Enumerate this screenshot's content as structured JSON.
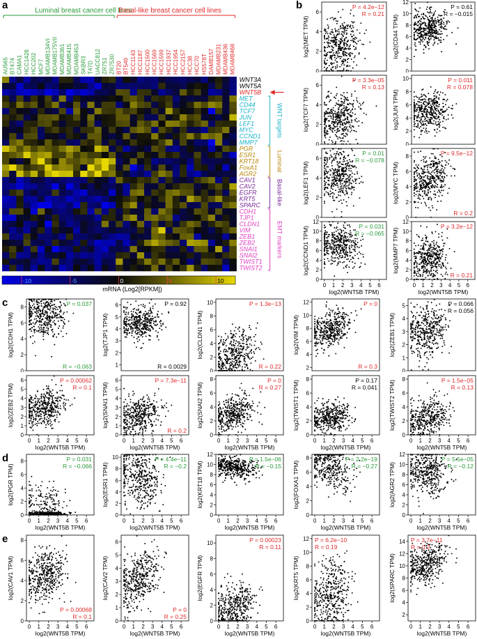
{
  "letters": {
    "a": "a",
    "b": "b",
    "c": "c",
    "d": "d",
    "e": "e"
  },
  "colors": {
    "luminal_group": "#2a9a3a",
    "basal_group": "#e02828",
    "wnt_targets": "#1ab3c8",
    "luminal_markers": "#b8860b",
    "basal_markers": "#7a2a9a",
    "emt_markers": "#e040c0",
    "sig_red": "#e02828",
    "sig_green": "#2a9a3a",
    "ns_black": "#000000"
  },
  "heatmap": {
    "luminal_header": "Luminal breast cancer cell lines",
    "basal_header": "Basal-like breast cancer cell lines",
    "luminal_lines": [
      "AU565",
      "BT474",
      "CAMA1",
      "HCC1428",
      "HCC202",
      "MCF7",
      "MDAMB134VI",
      "MDAMB175VII",
      "MDAMB361",
      "MDAMB415",
      "MDAMB453",
      "SKBR3",
      "T47D",
      "UACC812",
      "ZR751",
      "ZR7530"
    ],
    "basal_lines": [
      "BT20",
      "BT549",
      "HCC1143",
      "HCC1187",
      "HCC1500",
      "HCC1569",
      "HCC1599",
      "HCC1937",
      "HCC1954",
      "HCC2157",
      "HCC38",
      "HCC70",
      "HS578T",
      "DAMB157",
      "MDAMB231",
      "MDAMB436",
      "MDAMB468"
    ],
    "genes": [
      {
        "name": "WNT3A",
        "group": "top"
      },
      {
        "name": "WNT5A",
        "group": "top"
      },
      {
        "name": "WNT5B",
        "group": "focus"
      },
      {
        "name": "MET",
        "group": "wnt"
      },
      {
        "name": "CD44",
        "group": "wnt"
      },
      {
        "name": "TCF7",
        "group": "wnt"
      },
      {
        "name": "JUN",
        "group": "wnt"
      },
      {
        "name": "LEF1",
        "group": "wnt"
      },
      {
        "name": "MYC",
        "group": "wnt"
      },
      {
        "name": "CCND1",
        "group": "wnt"
      },
      {
        "name": "MMP7",
        "group": "wnt"
      },
      {
        "name": "PGR",
        "group": "lum"
      },
      {
        "name": "ESR1",
        "group": "lum"
      },
      {
        "name": "KRT18",
        "group": "lum"
      },
      {
        "name": "FoxA1",
        "group": "lum"
      },
      {
        "name": "AGR2",
        "group": "lum"
      },
      {
        "name": "CAV1",
        "group": "bas"
      },
      {
        "name": "CAV2",
        "group": "bas"
      },
      {
        "name": "EGFR",
        "group": "bas"
      },
      {
        "name": "KRT5",
        "group": "bas"
      },
      {
        "name": "SPARC",
        "group": "bas"
      },
      {
        "name": "CDH1",
        "group": "emt"
      },
      {
        "name": "TJP1",
        "group": "emt"
      },
      {
        "name": "CLDN1",
        "group": "emt"
      },
      {
        "name": "VIM",
        "group": "emt"
      },
      {
        "name": "ZEB1",
        "group": "emt"
      },
      {
        "name": "ZEB2",
        "group": "emt"
      },
      {
        "name": "SNAI1",
        "group": "emt"
      },
      {
        "name": "SNAI2",
        "group": "emt"
      },
      {
        "name": "TWIST1",
        "group": "emt"
      },
      {
        "name": "TWIST2",
        "group": "emt"
      }
    ],
    "group_labels": {
      "wnt": "WNT targets",
      "lum": "Luminal",
      "bas": "Basal-like",
      "emt": "EMT markers"
    },
    "colorbar_ticks": [
      "-10",
      "-5",
      "0",
      "5",
      "10"
    ],
    "colorbar_label": "mRNA (Log2[RPKM])"
  },
  "scatter": {
    "x_label": "log2(WNT5B TPM)",
    "x_ticks": [
      "0",
      "1",
      "2",
      "3",
      "4",
      "5",
      "6"
    ],
    "panels_b": [
      {
        "gene": "MET",
        "ylabel": "log2(MET TPM)",
        "yticks": [
          "0",
          "2",
          "4",
          "6"
        ],
        "p": "P = 4.2e−12",
        "r": "R = 0.21",
        "sig": "red",
        "pos": "tr",
        "mu": 2.5,
        "slope": 0.3,
        "sd": 1.4,
        "ymax": 7,
        "ymin": 0
      },
      {
        "gene": "CD44",
        "ylabel": "log2(CD44 TPM)",
        "yticks": [
          "0",
          "2",
          "4",
          "6",
          "8",
          "10",
          "12"
        ],
        "p": "P = 0.61",
        "r": "R = −0.015",
        "sig": "black",
        "pos": "tr",
        "mu": 7.5,
        "slope": 0,
        "sd": 1.6,
        "ymax": 12,
        "ymin": 0
      },
      {
        "gene": "TCF7",
        "ylabel": "log2(TCF7 TPM)",
        "yticks": [
          "0",
          "2",
          "4",
          "6"
        ],
        "p": "P = 3.3e−05",
        "r": "R = 0.13",
        "sig": "red",
        "pos": "tr",
        "mu": 2.7,
        "slope": 0.2,
        "sd": 1.3,
        "ymax": 7,
        "ymin": 0
      },
      {
        "gene": "JUN",
        "ylabel": "log2(JUN TPM)",
        "yticks": [
          "0",
          "2",
          "4",
          "6",
          "8",
          "10"
        ],
        "p": "P = 0.011",
        "r": "R = 0.078",
        "sig": "red",
        "pos": "tr",
        "mu": 5,
        "slope": 0.15,
        "sd": 1.5,
        "ymax": 10.5,
        "ymin": 0
      },
      {
        "gene": "LEF1",
        "ylabel": "log2(LEF1 TPM)",
        "yticks": [
          "0",
          "2",
          "4",
          "6"
        ],
        "p": "P = 0.01",
        "r": "R = −0.078",
        "sig": "green",
        "pos": "tr",
        "mu": 4.2,
        "slope": -0.15,
        "sd": 1.4,
        "ymax": 7,
        "ymin": 0
      },
      {
        "gene": "MYC",
        "ylabel": "log2(MYC TPM)",
        "yticks": [
          "0",
          "2",
          "4",
          "6",
          "8"
        ],
        "p": "P = 9.5e−12",
        "r": "R = 0.2",
        "sig": "red",
        "pos": "split",
        "mu": 5,
        "slope": 0.35,
        "sd": 1.6,
        "ymax": 9,
        "ymin": 0
      },
      {
        "gene": "CCND1",
        "ylabel": "log2(CCND1 TPM)",
        "yticks": [
          "0",
          "2",
          "4",
          "6",
          "8",
          "10",
          "12"
        ],
        "p": "P = 0.031",
        "r": "R = −0.065",
        "sig": "green",
        "pos": "tr",
        "mu": 7,
        "slope": -0.2,
        "sd": 2,
        "ymax": 12,
        "ymin": 0
      },
      {
        "gene": "MMP7",
        "ylabel": "log2(MMP7 TPM)",
        "yticks": [
          "0",
          "2",
          "4",
          "6",
          "8",
          "10",
          "12"
        ],
        "p": "P = 3.2e−12",
        "r": "R = 0.21",
        "sig": "red",
        "pos": "split",
        "mu": 4.5,
        "slope": 0.5,
        "sd": 2.3,
        "ymax": 12,
        "ymin": 0
      }
    ],
    "panels_c1": [
      {
        "gene": "CDH1",
        "ylabel": "log2(CDH1 TPM)",
        "yticks": [
          "0",
          "2",
          "4",
          "6",
          "8"
        ],
        "p": "P = 0.037",
        "r": "R = −0.063",
        "sig": "green",
        "pos": "split",
        "mu": 6.8,
        "slope": -0.15,
        "sd": 1.5,
        "ymax": 9,
        "ymin": 0
      },
      {
        "gene": "TJP1",
        "ylabel": "log2(TJP1 TPM)",
        "yticks": [
          "1",
          "2",
          "3",
          "4",
          "5",
          "6"
        ],
        "p": "P = 0.92",
        "r": "R = 0.0029",
        "sig": "black",
        "pos": "split",
        "mu": 4.5,
        "slope": 0,
        "sd": 0.7,
        "ymax": 6.5,
        "ymin": 0.5
      },
      {
        "gene": "CLDN1",
        "ylabel": "log2(CLDN1 TPM)",
        "yticks": [
          "0",
          "2",
          "4",
          "6",
          "8",
          "10"
        ],
        "p": "P = 1.3e−13",
        "r": "R = 0.22",
        "sig": "red",
        "pos": "split",
        "mu": 2.5,
        "slope": 0.5,
        "sd": 1.8,
        "ymax": 10.5,
        "ymin": 0
      },
      {
        "gene": "VIM",
        "ylabel": "log2(VIM TPM)",
        "yticks": [
          "2",
          "4",
          "6",
          "8",
          "10",
          "12"
        ],
        "p": "P = 0",
        "r": "R = 0.3",
        "sig": "red",
        "pos": "split",
        "mu": 8,
        "slope": 0.6,
        "sd": 1.4,
        "ymax": 12.5,
        "ymin": 1.5
      },
      {
        "gene": "ZEB1",
        "ylabel": "log2(ZEB1 TPM)",
        "yticks": [
          "0",
          "1",
          "2",
          "3",
          "4",
          "5"
        ],
        "p": "P = 0.066",
        "r": "R = 0.056",
        "sig": "black",
        "pos": "tr",
        "mu": 3,
        "slope": 0.15,
        "sd": 1,
        "ymax": 5.5,
        "ymin": 0
      }
    ],
    "panels_c2": [
      {
        "gene": "ZEB2",
        "ylabel": "log2(ZEB2 TPM)",
        "yticks": [
          "0",
          "1",
          "2",
          "3",
          "4",
          "5",
          "6"
        ],
        "p": "P = 0.00062",
        "r": "R = 0.1",
        "sig": "red",
        "pos": "tr",
        "mu": 3,
        "slope": 0.2,
        "sd": 1,
        "ymax": 6.5,
        "ymin": 0
      },
      {
        "gene": "SNAI1",
        "ylabel": "log2(SNAI1 TPM)",
        "yticks": [
          "0",
          "1",
          "2",
          "3",
          "4",
          "5",
          "6"
        ],
        "p": "P = 7.3e−11",
        "r": "R = 0.2",
        "sig": "red",
        "pos": "split",
        "mu": 2.2,
        "slope": 0.3,
        "sd": 1,
        "ymax": 6.5,
        "ymin": 0
      },
      {
        "gene": "SNAI2",
        "ylabel": "log2(SNAI2 TPM)",
        "yticks": [
          "0",
          "2",
          "4",
          "6",
          "8"
        ],
        "p": "P = 0",
        "r": "R = 0.27",
        "sig": "red",
        "pos": "tr",
        "mu": 3.2,
        "slope": 0.5,
        "sd": 1.2,
        "ymax": 8.5,
        "ymin": 0
      },
      {
        "gene": "TWIST1",
        "ylabel": "log2(TWIST1 TPM)",
        "yticks": [
          "0",
          "2",
          "4",
          "6",
          "8"
        ],
        "p": "P = 0.17",
        "r": "R = 0.041",
        "sig": "black",
        "pos": "tr",
        "mu": 2.5,
        "slope": 0.15,
        "sd": 1.1,
        "ymax": 8.5,
        "ymin": 0
      },
      {
        "gene": "TWIST2",
        "ylabel": "log2(TWIST2 TPM)",
        "yticks": [
          "0",
          "2",
          "4",
          "6",
          "8"
        ],
        "p": "P = 1.5e−05",
        "r": "R = 0.13",
        "sig": "red",
        "pos": "tr",
        "mu": 2.5,
        "slope": 0.4,
        "sd": 1.4,
        "ymax": 8.5,
        "ymin": 0
      }
    ],
    "panels_d": [
      {
        "gene": "PGR",
        "ylabel": "log2(PGR TPM)",
        "yticks": [
          "0",
          "2",
          "4",
          "6",
          "8"
        ],
        "p": "P = 0.031",
        "r": "R = −0.066",
        "sig": "green",
        "pos": "tr",
        "mu": 1.2,
        "slope": -0.1,
        "sd": 1.8,
        "ymax": 9,
        "ymin": 0,
        "floor": true
      },
      {
        "gene": "ESR1",
        "ylabel": "log2(ESR1 TPM)",
        "yticks": [
          "0",
          "2",
          "4",
          "6",
          "8",
          "10"
        ],
        "p": "P = 4.4e−11",
        "r": "R = −0.2",
        "sig": "green",
        "pos": "tr",
        "mu": 6.5,
        "slope": -0.5,
        "sd": 2.8,
        "ymax": 10.5,
        "ymin": 0
      },
      {
        "gene": "KRT18",
        "ylabel": "log2(KRT18 TPM)",
        "yticks": [
          "0",
          "2",
          "4",
          "6",
          "8",
          "10",
          "12"
        ],
        "p": "P = 1.5e−06",
        "r": "R = −0.15",
        "sig": "green",
        "pos": "tr",
        "mu": 9.5,
        "slope": -0.2,
        "sd": 1.1,
        "ymax": 12,
        "ymin": 0
      },
      {
        "gene": "FOXA1",
        "ylabel": "log2(FOXA1 TPM)",
        "yticks": [
          "0",
          "2",
          "4",
          "6",
          "8"
        ],
        "p": "P = 2.2e−19",
        "r": "R = −0.27",
        "sig": "green",
        "pos": "tr",
        "mu": 7,
        "slope": -0.6,
        "sd": 1.8,
        "ymax": 8.5,
        "ymin": 0
      },
      {
        "gene": "AGR2",
        "ylabel": "log2(AGR2 TPM)",
        "yticks": [
          "0",
          "2",
          "4",
          "6",
          "8",
          "10",
          "12"
        ],
        "p": "P = 5.5e−05",
        "r": "R = −0.12",
        "sig": "green",
        "pos": "tr",
        "mu": 8.5,
        "slope": -0.3,
        "sd": 2.5,
        "ymax": 12,
        "ymin": 0
      }
    ],
    "panels_e": [
      {
        "gene": "CAV1",
        "ylabel": "log2(CAV1 TPM)",
        "yticks": [
          "0",
          "2",
          "4",
          "6",
          "8"
        ],
        "p": "P = 0.00068",
        "r": "R = 0.1",
        "sig": "red",
        "pos": "br",
        "mu": 4.5,
        "slope": 0.25,
        "sd": 1.3,
        "ymax": 8.5,
        "ymin": 0
      },
      {
        "gene": "CAV2",
        "ylabel": "log2(CAV2 TPM)",
        "yticks": [
          "0",
          "1",
          "2",
          "3",
          "4",
          "5",
          "6"
        ],
        "p": "P = 0",
        "r": "R = 0.25",
        "sig": "red",
        "pos": "br",
        "mu": 3.2,
        "slope": 0.4,
        "sd": 1,
        "ymax": 6.5,
        "ymin": 0
      },
      {
        "gene": "EGFR",
        "ylabel": "log2(EGFR TPM)",
        "yticks": [
          "0",
          "2",
          "4",
          "6",
          "8",
          "10"
        ],
        "p": "P = 0.00023",
        "r": "R = 0.11",
        "sig": "red",
        "pos": "tr",
        "mu": 1.8,
        "slope": 0.3,
        "sd": 1.5,
        "ymax": 11,
        "ymin": 0
      },
      {
        "gene": "KRT5",
        "ylabel": "log2(KRT5 TPM)",
        "yticks": [
          "0",
          "2",
          "4",
          "6",
          "8",
          "10",
          "12"
        ],
        "p": "P = 6.2e−10",
        "r": "R = 0.19",
        "sig": "red",
        "pos": "tl",
        "mu": 4,
        "slope": 0.6,
        "sd": 2.4,
        "ymax": 12.5,
        "ymin": 0
      },
      {
        "gene": "SPARC",
        "ylabel": "log2(SPARC TPM)",
        "yticks": [
          "2",
          "4",
          "6",
          "8",
          "10",
          "12",
          "14"
        ],
        "p": "P = 3.7e−11",
        "r": "R = 0.2",
        "sig": "red",
        "pos": "tl",
        "mu": 10.5,
        "slope": 0.5,
        "sd": 1.5,
        "ymax": 15,
        "ymin": 1
      }
    ]
  }
}
